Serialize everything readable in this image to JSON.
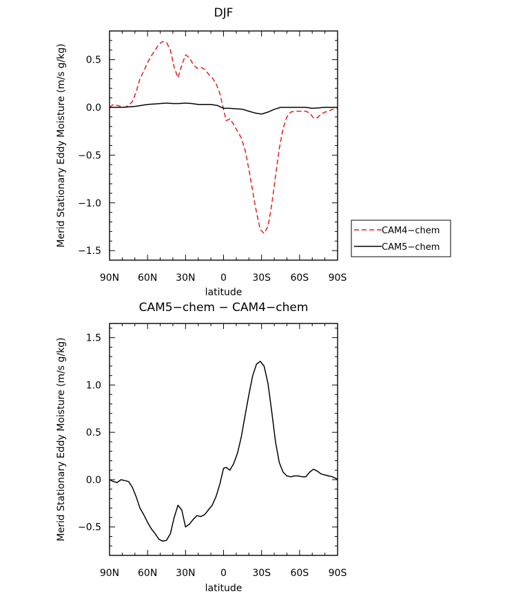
{
  "chart_data": [
    {
      "type": "line",
      "title": "DJF",
      "xlabel": "latitude",
      "ylabel": "Merid Stationary Eddy Moisture (m/s g/kg)",
      "x_ticks": [
        {
          "value": 90,
          "label": "90N"
        },
        {
          "value": 60,
          "label": "60N"
        },
        {
          "value": 30,
          "label": "30N"
        },
        {
          "value": 0,
          "label": "0"
        },
        {
          "value": -30,
          "label": "30S"
        },
        {
          "value": -60,
          "label": "60S"
        },
        {
          "value": -90,
          "label": "90S"
        }
      ],
      "y_ticks": [
        {
          "value": 0.5,
          "label": "0.5"
        },
        {
          "value": 0.0,
          "label": "0.0"
        },
        {
          "value": -0.5,
          "label": "−0.5"
        },
        {
          "value": -1.0,
          "label": "−1.0"
        },
        {
          "value": -1.5,
          "label": "−1.5"
        }
      ],
      "xlim": [
        90,
        -90
      ],
      "ylim": [
        -1.6,
        0.8
      ],
      "grid": false,
      "legend_position": "right",
      "series": [
        {
          "name": "CAM4−chem",
          "color": "#e41a1c",
          "dash": "dashed",
          "x": [
            90,
            87,
            84,
            81,
            78,
            75,
            72,
            69,
            66,
            63,
            60,
            57,
            54,
            51,
            48,
            45,
            42,
            39,
            36,
            33,
            30,
            27,
            24,
            21,
            18,
            15,
            12,
            9,
            6,
            3,
            0,
            -2,
            -5,
            -8,
            -11,
            -14,
            -17,
            -20,
            -23,
            -26,
            -29,
            -32,
            -35,
            -38,
            -41,
            -44,
            -47,
            -50,
            -53,
            -56,
            -59,
            -62,
            -65,
            -68,
            -71,
            -74,
            -77,
            -80,
            -83,
            -86,
            -89,
            -90
          ],
          "values": [
            0.0,
            0.03,
            0.02,
            0.01,
            0.0,
            0.02,
            0.06,
            0.16,
            0.3,
            0.38,
            0.47,
            0.54,
            0.6,
            0.66,
            0.69,
            0.68,
            0.6,
            0.42,
            0.31,
            0.44,
            0.55,
            0.52,
            0.45,
            0.41,
            0.42,
            0.4,
            0.35,
            0.31,
            0.25,
            0.15,
            -0.02,
            -0.14,
            -0.12,
            -0.18,
            -0.25,
            -0.32,
            -0.45,
            -0.65,
            -0.88,
            -1.1,
            -1.28,
            -1.32,
            -1.25,
            -1.02,
            -0.72,
            -0.43,
            -0.22,
            -0.1,
            -0.05,
            -0.04,
            -0.04,
            -0.04,
            -0.04,
            -0.06,
            -0.11,
            -0.11,
            -0.07,
            -0.05,
            -0.04,
            -0.02,
            -0.01,
            0.0
          ]
        },
        {
          "name": "CAM5−chem",
          "color": "#000000",
          "dash": "solid",
          "x": [
            90,
            80,
            70,
            60,
            50,
            45,
            40,
            35,
            30,
            25,
            20,
            10,
            5,
            0,
            -5,
            -10,
            -15,
            -20,
            -25,
            -30,
            -35,
            -40,
            -45,
            -50,
            -55,
            -60,
            -65,
            -70,
            -75,
            -80,
            -90
          ],
          "values": [
            0.0,
            0.0,
            0.01,
            0.03,
            0.04,
            0.045,
            0.04,
            0.04,
            0.045,
            0.04,
            0.03,
            0.03,
            0.02,
            -0.01,
            -0.01,
            -0.015,
            -0.02,
            -0.04,
            -0.06,
            -0.07,
            -0.05,
            -0.02,
            0.0,
            0.0,
            0.0,
            0.0,
            0.0,
            -0.01,
            -0.005,
            0.0,
            0.0
          ]
        }
      ]
    },
    {
      "type": "line",
      "title": "CAM5−chem − CAM4−chem",
      "xlabel": "latitude",
      "ylabel": "Merid Stationary Eddy Moisture (m/s g/kg)",
      "x_ticks": [
        {
          "value": 90,
          "label": "90N"
        },
        {
          "value": 60,
          "label": "60N"
        },
        {
          "value": 30,
          "label": "30N"
        },
        {
          "value": 0,
          "label": "0"
        },
        {
          "value": -30,
          "label": "30S"
        },
        {
          "value": -60,
          "label": "60S"
        },
        {
          "value": -90,
          "label": "90S"
        }
      ],
      "y_ticks": [
        {
          "value": 1.5,
          "label": "1.5"
        },
        {
          "value": 1.0,
          "label": "1.0"
        },
        {
          "value": 0.5,
          "label": "0.5"
        },
        {
          "value": 0.0,
          "label": "0.0"
        },
        {
          "value": -0.5,
          "label": "−0.5"
        }
      ],
      "xlim": [
        90,
        -90
      ],
      "ylim": [
        -0.8,
        1.65
      ],
      "grid": false,
      "series": [
        {
          "color": "#000000",
          "dash": "solid",
          "x": [
            90,
            87,
            84,
            81,
            78,
            75,
            72,
            69,
            66,
            63,
            60,
            57,
            54,
            51,
            48,
            45,
            42,
            39,
            36,
            33,
            30,
            27,
            24,
            21,
            18,
            15,
            12,
            9,
            6,
            3,
            0,
            -2,
            -5,
            -8,
            -11,
            -14,
            -17,
            -20,
            -23,
            -26,
            -29,
            -32,
            -35,
            -38,
            -41,
            -44,
            -47,
            -50,
            -53,
            -56,
            -59,
            -62,
            -65,
            -68,
            -71,
            -74,
            -77,
            -80,
            -83,
            -86,
            -89,
            -90
          ],
          "values": [
            0.0,
            -0.02,
            -0.03,
            0.0,
            -0.01,
            -0.02,
            -0.08,
            -0.18,
            -0.3,
            -0.37,
            -0.45,
            -0.52,
            -0.57,
            -0.63,
            -0.65,
            -0.64,
            -0.57,
            -0.4,
            -0.27,
            -0.32,
            -0.5,
            -0.47,
            -0.42,
            -0.38,
            -0.39,
            -0.37,
            -0.32,
            -0.27,
            -0.18,
            -0.05,
            0.12,
            0.13,
            0.1,
            0.17,
            0.28,
            0.45,
            0.68,
            0.9,
            1.1,
            1.22,
            1.25,
            1.2,
            1.02,
            0.72,
            0.4,
            0.18,
            0.08,
            0.04,
            0.03,
            0.04,
            0.04,
            0.03,
            0.03,
            0.08,
            0.11,
            0.09,
            0.06,
            0.05,
            0.04,
            0.03,
            0.01,
            0.0
          ]
        }
      ]
    }
  ]
}
